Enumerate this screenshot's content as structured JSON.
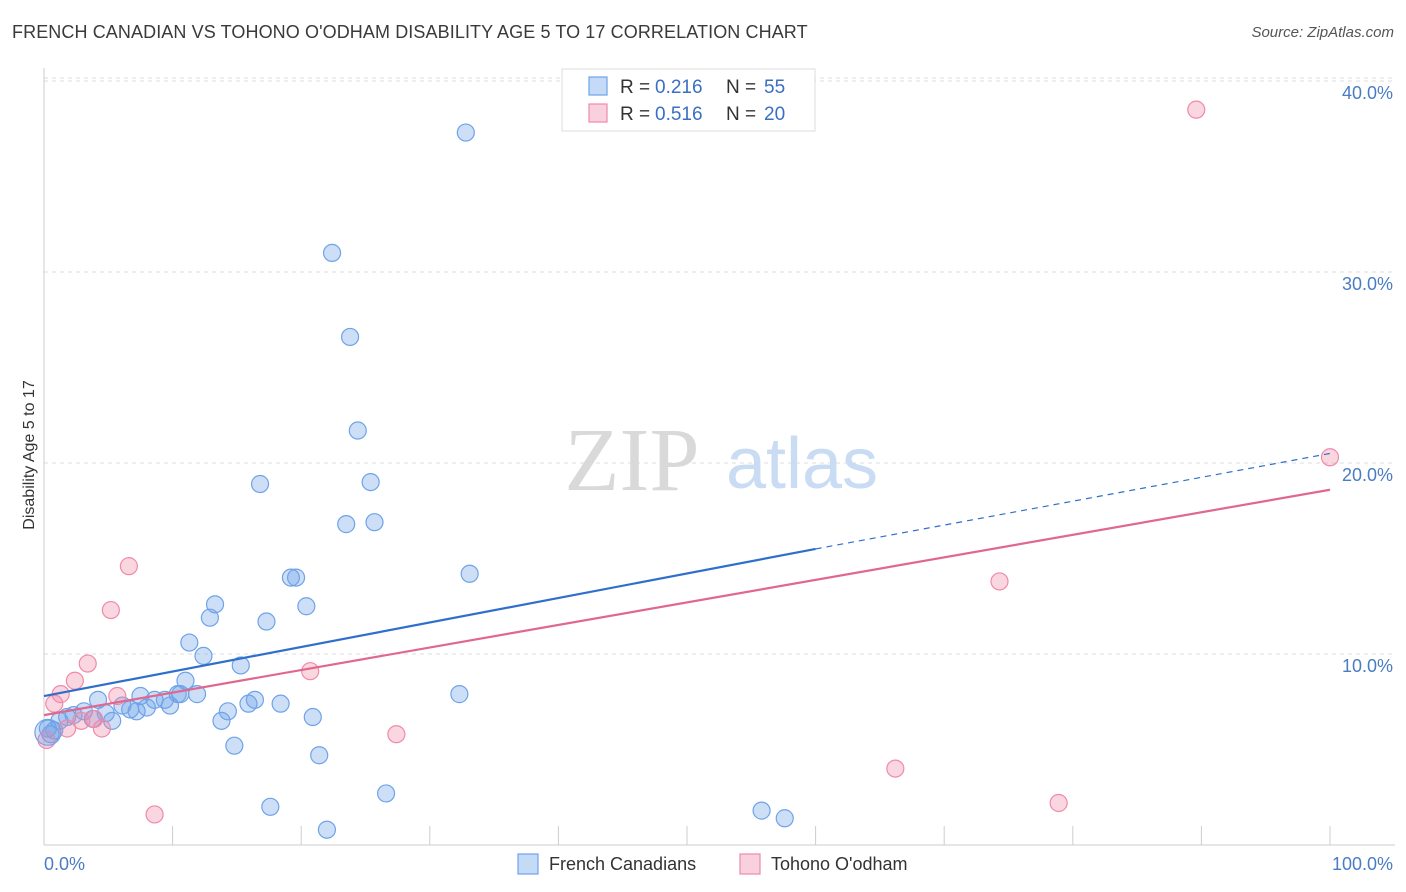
{
  "title": "FRENCH CANADIAN VS TOHONO O'ODHAM DISABILITY AGE 5 TO 17 CORRELATION CHART",
  "source": "Source: ZipAtlas.com",
  "watermark": {
    "zip": "ZIP",
    "atlas": "atlas"
  },
  "chart_data": {
    "type": "scatter",
    "ylabel": "Disability Age 5 to 17",
    "xlim": [
      0,
      100
    ],
    "ylim": [
      0,
      40
    ],
    "x_ticks": [
      "0.0%",
      "100.0%"
    ],
    "y_ticks": [
      {
        "value": 10,
        "label": "10.0%"
      },
      {
        "value": 20,
        "label": "20.0%"
      },
      {
        "value": 30,
        "label": "30.0%"
      },
      {
        "value": 40,
        "label": "40.0%"
      }
    ],
    "grid": true,
    "legend_position": "top-center",
    "legend": [
      {
        "r_label": "R =",
        "r": "0.216",
        "n_label": "N =",
        "n": "55",
        "color": "#6fa3e8"
      },
      {
        "r_label": "R =",
        "r": "0.516",
        "n_label": "N =",
        "n": "20",
        "color": "#f08aaa"
      }
    ],
    "series": [
      {
        "name": "French Canadians",
        "color": "#6fa3e8",
        "line_color": "#2f6fcc",
        "trend": {
          "x0": 0,
          "y0": 7.8,
          "x1": 60,
          "y1": 15.5,
          "dash_to_x": 100,
          "dash_to_y": 20.5
        },
        "points": [
          [
            0.3,
            6.1
          ],
          [
            0.5,
            5.8
          ],
          [
            1.2,
            6.5
          ],
          [
            1.8,
            6.7
          ],
          [
            2.3,
            6.8
          ],
          [
            3.1,
            7.0
          ],
          [
            3.8,
            6.6
          ],
          [
            4.2,
            7.6
          ],
          [
            4.8,
            6.9
          ],
          [
            5.3,
            6.5
          ],
          [
            6.1,
            7.3
          ],
          [
            6.7,
            7.1
          ],
          [
            7.2,
            7.0
          ],
          [
            7.5,
            7.8
          ],
          [
            8.0,
            7.2
          ],
          [
            8.6,
            7.6
          ],
          [
            9.4,
            7.6
          ],
          [
            9.8,
            7.3
          ],
          [
            10.4,
            7.9
          ],
          [
            10.6,
            7.9
          ],
          [
            11.0,
            8.6
          ],
          [
            11.3,
            10.6
          ],
          [
            11.9,
            7.9
          ],
          [
            12.4,
            9.9
          ],
          [
            12.9,
            11.9
          ],
          [
            13.3,
            12.6
          ],
          [
            13.8,
            6.5
          ],
          [
            14.3,
            7.0
          ],
          [
            14.8,
            5.2
          ],
          [
            15.3,
            9.4
          ],
          [
            15.9,
            7.4
          ],
          [
            16.4,
            7.6
          ],
          [
            16.8,
            18.9
          ],
          [
            17.3,
            11.7
          ],
          [
            17.6,
            2.0
          ],
          [
            18.4,
            7.4
          ],
          [
            19.2,
            14.0
          ],
          [
            19.6,
            14.0
          ],
          [
            20.4,
            12.5
          ],
          [
            20.9,
            6.7
          ],
          [
            21.4,
            4.7
          ],
          [
            22.0,
            0.8
          ],
          [
            22.4,
            31.0
          ],
          [
            23.5,
            16.8
          ],
          [
            23.8,
            26.6
          ],
          [
            24.4,
            21.7
          ],
          [
            25.4,
            19.0
          ],
          [
            25.7,
            16.9
          ],
          [
            26.6,
            2.7
          ],
          [
            32.3,
            7.9
          ],
          [
            32.8,
            37.3
          ],
          [
            33.1,
            14.2
          ],
          [
            55.8,
            1.8
          ],
          [
            57.6,
            1.4
          ],
          [
            0.8,
            6.0
          ]
        ]
      },
      {
        "name": "Tohono O'odham",
        "color": "#f08aaa",
        "line_color": "#e0688f",
        "trend": {
          "x0": 0,
          "y0": 6.8,
          "x1": 100,
          "y1": 18.6
        },
        "points": [
          [
            0.2,
            5.5
          ],
          [
            0.8,
            7.4
          ],
          [
            1.3,
            7.9
          ],
          [
            1.8,
            6.1
          ],
          [
            2.4,
            8.6
          ],
          [
            2.9,
            6.5
          ],
          [
            3.4,
            9.5
          ],
          [
            3.9,
            6.6
          ],
          [
            4.5,
            6.1
          ],
          [
            5.2,
            12.3
          ],
          [
            5.7,
            7.8
          ],
          [
            6.6,
            14.6
          ],
          [
            8.6,
            1.6
          ],
          [
            20.7,
            9.1
          ],
          [
            27.4,
            5.8
          ],
          [
            66.2,
            4.0
          ],
          [
            74.3,
            13.8
          ],
          [
            78.9,
            2.2
          ],
          [
            89.6,
            38.5
          ],
          [
            100.0,
            20.3
          ]
        ]
      }
    ]
  }
}
